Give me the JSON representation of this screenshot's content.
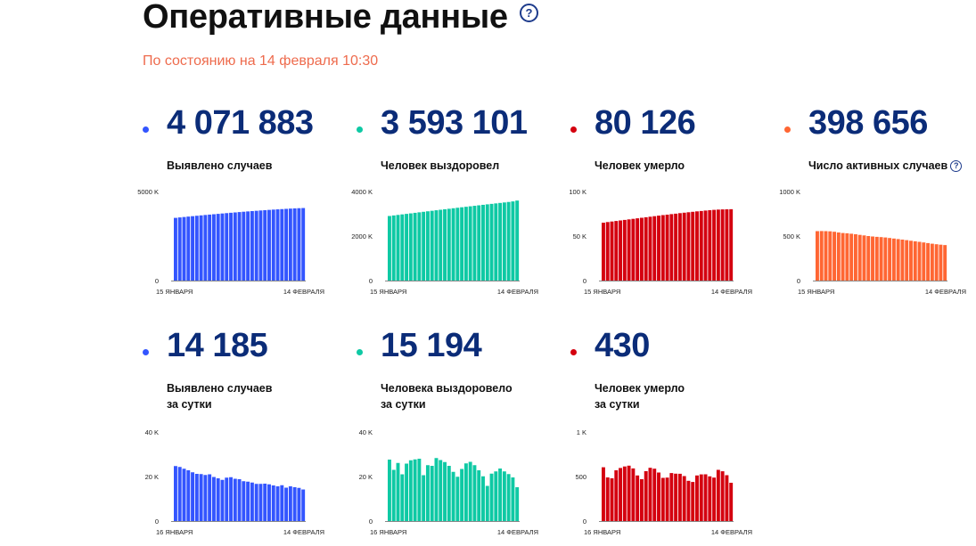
{
  "header": {
    "title": "Оперативные данные",
    "help": "?",
    "subtitle": "По состоянию на 14 февраля 10:30"
  },
  "colors": {
    "blue": "#3355ff",
    "green": "#0ec9a4",
    "red": "#d4000f",
    "orange": "#ff6633",
    "number": "#0b2c78"
  },
  "stats": {
    "cases": {
      "value": "4 071 883",
      "label": "Выявлено случаев"
    },
    "recovered": {
      "value": "3 593 101",
      "label": "Человек выздоровел"
    },
    "deaths": {
      "value": "80 126",
      "label": "Человек умерло"
    },
    "active": {
      "value": "398 656",
      "label": "Число активных случаев"
    },
    "cases_day": {
      "value": "14 185",
      "label1": "Выявлено случаев",
      "label2": "за сутки"
    },
    "recovered_day": {
      "value": "15 194",
      "label1": "Человека выздоровело",
      "label2": "за сутки"
    },
    "deaths_day": {
      "value": "430",
      "label1": "Человек умерло",
      "label2": "за сутки"
    }
  },
  "chart_data": [
    {
      "id": "cases",
      "type": "bar",
      "color": "#3355ff",
      "y_ticks": [
        "5000 K",
        "0"
      ],
      "ylim": [
        0,
        5000000
      ],
      "x_labels": [
        "15 ЯНВАРЯ",
        "14 ФЕВРАЛЯ"
      ],
      "values": [
        3520000,
        3545000,
        3568000,
        3592000,
        3615000,
        3638000,
        3660000,
        3682000,
        3703000,
        3724000,
        3745000,
        3766000,
        3786000,
        3806000,
        3825000,
        3845000,
        3864000,
        3882000,
        3900000,
        3917000,
        3935000,
        3952000,
        3968000,
        3984000,
        3998000,
        4012000,
        4026000,
        4040000,
        4052000,
        4063000,
        4071883
      ]
    },
    {
      "id": "recovered",
      "type": "bar",
      "color": "#0ec9a4",
      "y_ticks": [
        "4000 K",
        "2000 K",
        "0"
      ],
      "ylim": [
        0,
        4000000
      ],
      "x_labels": [
        "15 ЯНВАРЯ",
        "14 ФЕВРАЛЯ"
      ],
      "values": [
        2900000,
        2925000,
        2948000,
        2972000,
        2995000,
        3018000,
        3042000,
        3065000,
        3088000,
        3111000,
        3134000,
        3157000,
        3180000,
        3203000,
        3225000,
        3248000,
        3270000,
        3292000,
        3314000,
        3336000,
        3358000,
        3380000,
        3402000,
        3424000,
        3445000,
        3466000,
        3487000,
        3508000,
        3530000,
        3555000,
        3593101
      ]
    },
    {
      "id": "deaths",
      "type": "bar",
      "color": "#d4000f",
      "y_ticks": [
        "100 K",
        "50 K",
        "0"
      ],
      "ylim": [
        0,
        100000
      ],
      "x_labels": [
        "15 ЯНВАРЯ",
        "14 ФЕВРАЛЯ"
      ],
      "values": [
        65000,
        65700,
        66300,
        66900,
        67500,
        68100,
        68700,
        69300,
        69900,
        70500,
        71100,
        71700,
        72300,
        72900,
        73500,
        74000,
        74600,
        75100,
        75700,
        76200,
        76700,
        77200,
        77700,
        78100,
        78600,
        79000,
        79400,
        79700,
        79900,
        80000,
        80126
      ]
    },
    {
      "id": "active",
      "type": "bar",
      "color": "#ff6633",
      "y_ticks": [
        "1000 K",
        "500 K",
        "0"
      ],
      "ylim": [
        0,
        1000000
      ],
      "x_labels": [
        "15 ЯНВАРЯ",
        "14 ФЕВРАЛЯ"
      ],
      "values": [
        555000,
        556000,
        555000,
        553000,
        548000,
        540000,
        534000,
        531000,
        526000,
        520000,
        513000,
        507000,
        500000,
        495000,
        491000,
        488000,
        484000,
        478000,
        472000,
        466000,
        460000,
        454000,
        447000,
        441000,
        435000,
        428000,
        421000,
        414000,
        408000,
        403000,
        398656
      ]
    },
    {
      "id": "cases_day",
      "type": "bar",
      "color": "#3355ff",
      "y_ticks": [
        "40 K",
        "20 K",
        "0"
      ],
      "ylim": [
        0,
        40000
      ],
      "x_labels": [
        "16 ЯНВАРЯ",
        "14 ФЕВРАЛЯ"
      ],
      "values": [
        24700,
        24300,
        23500,
        22800,
        21900,
        21200,
        21100,
        20700,
        21000,
        19800,
        19200,
        18500,
        19500,
        19700,
        19000,
        18800,
        17900,
        17700,
        17300,
        16700,
        16700,
        16800,
        16500,
        16000,
        15600,
        16100,
        15000,
        15600,
        15200,
        14900,
        14185
      ]
    },
    {
      "id": "recovered_day",
      "type": "bar",
      "color": "#0ec9a4",
      "y_ticks": [
        "40 K",
        "20 K",
        "0"
      ],
      "ylim": [
        0,
        40000
      ],
      "x_labels": [
        "16 ЯНВАРЯ",
        "14 ФЕВРАЛЯ"
      ],
      "values": [
        27600,
        23000,
        26100,
        21000,
        25800,
        27300,
        27700,
        28000,
        20600,
        25100,
        24800,
        28300,
        27400,
        26500,
        24800,
        22100,
        19900,
        23400,
        25900,
        26600,
        25100,
        22800,
        20100,
        15800,
        21300,
        22300,
        23600,
        22300,
        21100,
        19600,
        15194
      ]
    },
    {
      "id": "deaths_day",
      "type": "bar",
      "color": "#d4000f",
      "y_ticks": [
        "1 K",
        "500",
        "0"
      ],
      "ylim": [
        0,
        1000
      ],
      "x_labels": [
        "16 ЯНВАРЯ",
        "14 ФЕВРАЛЯ"
      ],
      "values": [
        604,
        490,
        480,
        570,
        596,
        613,
        622,
        591,
        512,
        470,
        560,
        598,
        588,
        545,
        485,
        488,
        539,
        532,
        531,
        505,
        452,
        439,
        512,
        524,
        525,
        502,
        488,
        575,
        559,
        515,
        430
      ]
    }
  ]
}
